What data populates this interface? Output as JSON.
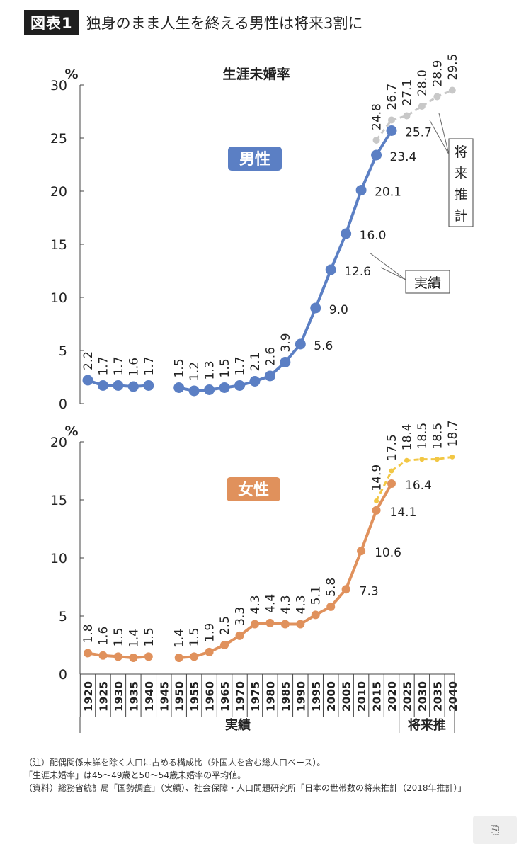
{
  "header": {
    "badge": "図表1",
    "title": "独身のまま人生を終える男性は将来3割に"
  },
  "notes": [
    "（注）配偶関係未詳を除く人口に占める構成比（外国人を含む総人口ベース）。",
    "「生涯未婚率」は45～49歳と50～54歳未婚率の平均値。",
    "（資料）総務省統計局「国勢調査」（実績）、社会保障・人口問題研究所「日本の世帯数の将来推計（2018年推計）」"
  ],
  "corner_button_icon": "copy-icon",
  "corner_button_glyph": "⎘",
  "colors": {
    "male": "#5b7fc4",
    "female": "#e0915c",
    "male_proj": "#c8c8c8",
    "female_proj": "#f2c744"
  },
  "chart_data": [
    {
      "type": "line",
      "title": "生涯未婚率",
      "badge": "男性",
      "y_unit": "%",
      "ylim": [
        0,
        30
      ],
      "yticks": [
        0,
        5,
        10,
        15,
        20,
        25,
        30
      ],
      "callouts": {
        "actual": "実績",
        "projection": "将来推計"
      },
      "series": [
        {
          "kind": "actual",
          "segments": [
            {
              "x": [
                1920,
                1925,
                1930,
                1935,
                1940
              ],
              "y": [
                2.2,
                1.7,
                1.7,
                1.6,
                1.7
              ]
            },
            {
              "x": [
                1950,
                1955,
                1960,
                1965,
                1970,
                1975,
                1980,
                1985,
                1990,
                1995,
                2000,
                2005,
                2010,
                2015,
                2020
              ],
              "y": [
                1.5,
                1.2,
                1.3,
                1.5,
                1.7,
                2.1,
                2.6,
                3.9,
                5.6,
                9.0,
                12.6,
                16.0,
                20.1,
                23.4,
                25.7
              ]
            }
          ]
        },
        {
          "kind": "projection",
          "segments": [
            {
              "x": [
                2015,
                2020,
                2025,
                2030,
                2035,
                2040
              ],
              "y": [
                24.8,
                26.7,
                27.1,
                28.0,
                28.9,
                29.5
              ]
            }
          ]
        }
      ],
      "labels": [
        {
          "x": 1920,
          "text": "2.2",
          "style": "v"
        },
        {
          "x": 1925,
          "text": "1.7",
          "style": "v"
        },
        {
          "x": 1930,
          "text": "1.7",
          "style": "v"
        },
        {
          "x": 1935,
          "text": "1.6",
          "style": "v"
        },
        {
          "x": 1940,
          "text": "1.7",
          "style": "v"
        },
        {
          "x": 1950,
          "text": "1.5",
          "style": "v"
        },
        {
          "x": 1955,
          "text": "1.2",
          "style": "v"
        },
        {
          "x": 1960,
          "text": "1.3",
          "style": "v"
        },
        {
          "x": 1965,
          "text": "1.5",
          "style": "v"
        },
        {
          "x": 1970,
          "text": "1.7",
          "style": "v"
        },
        {
          "x": 1975,
          "text": "2.1",
          "style": "v"
        },
        {
          "x": 1980,
          "text": "2.6",
          "style": "v"
        },
        {
          "x": 1985,
          "text": "3.9",
          "style": "v"
        },
        {
          "x": 1990,
          "text": "5.6",
          "style": "h"
        },
        {
          "x": 1995,
          "text": "9.0",
          "style": "h"
        },
        {
          "x": 2000,
          "text": "12.6",
          "style": "h"
        },
        {
          "x": 2005,
          "text": "16.0",
          "style": "h"
        },
        {
          "x": 2010,
          "text": "20.1",
          "style": "h"
        },
        {
          "x": 2015,
          "text": "23.4",
          "style": "h"
        },
        {
          "x": 2020,
          "text": "25.7",
          "style": "h"
        },
        {
          "x": 2015,
          "text": "24.8",
          "style": "vp"
        },
        {
          "x": 2020,
          "text": "26.7",
          "style": "vp"
        },
        {
          "x": 2025,
          "text": "27.1",
          "style": "vp"
        },
        {
          "x": 2030,
          "text": "28.0",
          "style": "vp"
        },
        {
          "x": 2035,
          "text": "28.9",
          "style": "vp"
        },
        {
          "x": 2040,
          "text": "29.5",
          "style": "vp"
        }
      ]
    },
    {
      "type": "line",
      "badge": "女性",
      "y_unit": "%",
      "ylim": [
        0,
        20
      ],
      "yticks": [
        0,
        5,
        10,
        15,
        20
      ],
      "series": [
        {
          "kind": "actual",
          "segments": [
            {
              "x": [
                1920,
                1925,
                1930,
                1935,
                1940
              ],
              "y": [
                1.8,
                1.6,
                1.5,
                1.4,
                1.5
              ]
            },
            {
              "x": [
                1950,
                1955,
                1960,
                1965,
                1970,
                1975,
                1980,
                1985,
                1990,
                1995,
                2000,
                2005,
                2010,
                2015,
                2020
              ],
              "y": [
                1.4,
                1.5,
                1.9,
                2.5,
                3.3,
                4.3,
                4.4,
                4.3,
                4.3,
                5.1,
                5.8,
                7.3,
                10.6,
                14.1,
                16.4
              ]
            }
          ]
        },
        {
          "kind": "projection",
          "segments": [
            {
              "x": [
                2015,
                2020,
                2025,
                2030,
                2035,
                2040
              ],
              "y": [
                14.9,
                17.5,
                18.4,
                18.5,
                18.5,
                18.7
              ]
            }
          ]
        }
      ],
      "labels": [
        {
          "x": 1920,
          "text": "1.8",
          "style": "v"
        },
        {
          "x": 1925,
          "text": "1.6",
          "style": "v"
        },
        {
          "x": 1930,
          "text": "1.5",
          "style": "v"
        },
        {
          "x": 1935,
          "text": "1.4",
          "style": "v"
        },
        {
          "x": 1940,
          "text": "1.5",
          "style": "v"
        },
        {
          "x": 1950,
          "text": "1.4",
          "style": "v"
        },
        {
          "x": 1955,
          "text": "1.5",
          "style": "v"
        },
        {
          "x": 1960,
          "text": "1.9",
          "style": "v"
        },
        {
          "x": 1965,
          "text": "2.5",
          "style": "v"
        },
        {
          "x": 1970,
          "text": "3.3",
          "style": "v"
        },
        {
          "x": 1975,
          "text": "4.3",
          "style": "v"
        },
        {
          "x": 1980,
          "text": "4.4",
          "style": "v"
        },
        {
          "x": 1985,
          "text": "4.3",
          "style": "v"
        },
        {
          "x": 1990,
          "text": "4.3",
          "style": "v"
        },
        {
          "x": 1995,
          "text": "5.1",
          "style": "v"
        },
        {
          "x": 2000,
          "text": "5.8",
          "style": "v"
        },
        {
          "x": 2005,
          "text": "7.3",
          "style": "h"
        },
        {
          "x": 2010,
          "text": "10.6",
          "style": "h"
        },
        {
          "x": 2015,
          "text": "14.1",
          "style": "h"
        },
        {
          "x": 2020,
          "text": "16.4",
          "style": "h"
        },
        {
          "x": 2015,
          "text": "14.9",
          "style": "vp"
        },
        {
          "x": 2020,
          "text": "17.5",
          "style": "vp"
        },
        {
          "x": 2025,
          "text": "18.4",
          "style": "vp"
        },
        {
          "x": 2030,
          "text": "18.5",
          "style": "vp"
        },
        {
          "x": 2035,
          "text": "18.5",
          "style": "vp"
        },
        {
          "x": 2040,
          "text": "18.7",
          "style": "vp"
        }
      ]
    }
  ],
  "x_axis": {
    "ticks": [
      1920,
      1925,
      1930,
      1935,
      1940,
      1945,
      1950,
      1955,
      1960,
      1965,
      1970,
      1975,
      1980,
      1985,
      1990,
      1995,
      2000,
      2005,
      2010,
      2015,
      2020,
      2025,
      2030,
      2035,
      2040
    ],
    "groups": [
      {
        "label": "実績",
        "from": 1920,
        "to": 2020
      },
      {
        "label": "将来推",
        "from": 2025,
        "to": 2040
      }
    ]
  }
}
